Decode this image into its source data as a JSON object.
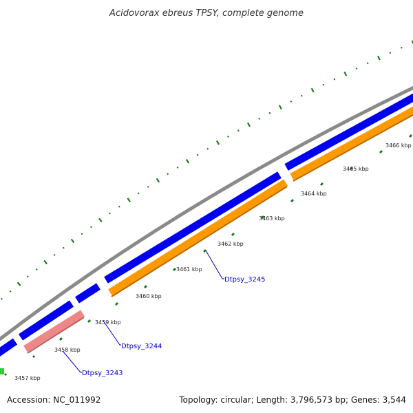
{
  "title": "Acidovorax ebreus TPSY, complete genome",
  "footer": {
    "accession": "Accession: NC_011992",
    "summary": "Topology: circular; Length: 3,796,573 bp; Genes: 3,544"
  },
  "colors": {
    "backbone": "#808080",
    "forward_strand_cds": "#0000ee",
    "reverse_strand_cds": "#ff9900",
    "reverse_strand_cds_alt": "#ee8888",
    "other_feature": "#33cc33",
    "tick_marks": "#1a7a1a",
    "gene_label": "#0000cc"
  },
  "kbp_labels": [
    "3457 kbp",
    "3458 kbp",
    "3459 kbp",
    "3460 kbp",
    "3461 kbp",
    "3462 kbp",
    "3463 kbp",
    "3464 kbp",
    "3465 kbp",
    "3466 kbp"
  ],
  "gene_labels": [
    "Dtpsy_3243",
    "Dtpsy_3244",
    "Dtpsy_3245"
  ]
}
